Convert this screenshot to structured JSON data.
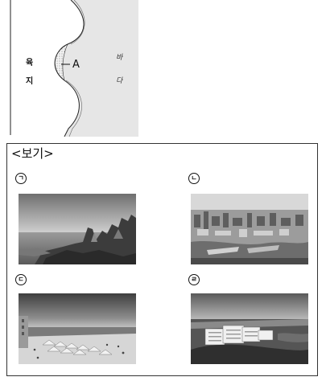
{
  "diagram": {
    "land_label_1": "육",
    "land_label_2": "지",
    "sea_label_1": "바",
    "sea_label_2": "다",
    "point_label": "A"
  },
  "bogi": {
    "title": "<보기>",
    "items": [
      {
        "marker": "ㄱ",
        "scene": "rocky-coast-photo"
      },
      {
        "marker": "ㄴ",
        "scene": "harbor-city-photo"
      },
      {
        "marker": "ㄷ",
        "scene": "sandy-beach-photo"
      },
      {
        "marker": "ㄹ",
        "scene": "seaside-resort-photo"
      }
    ]
  }
}
